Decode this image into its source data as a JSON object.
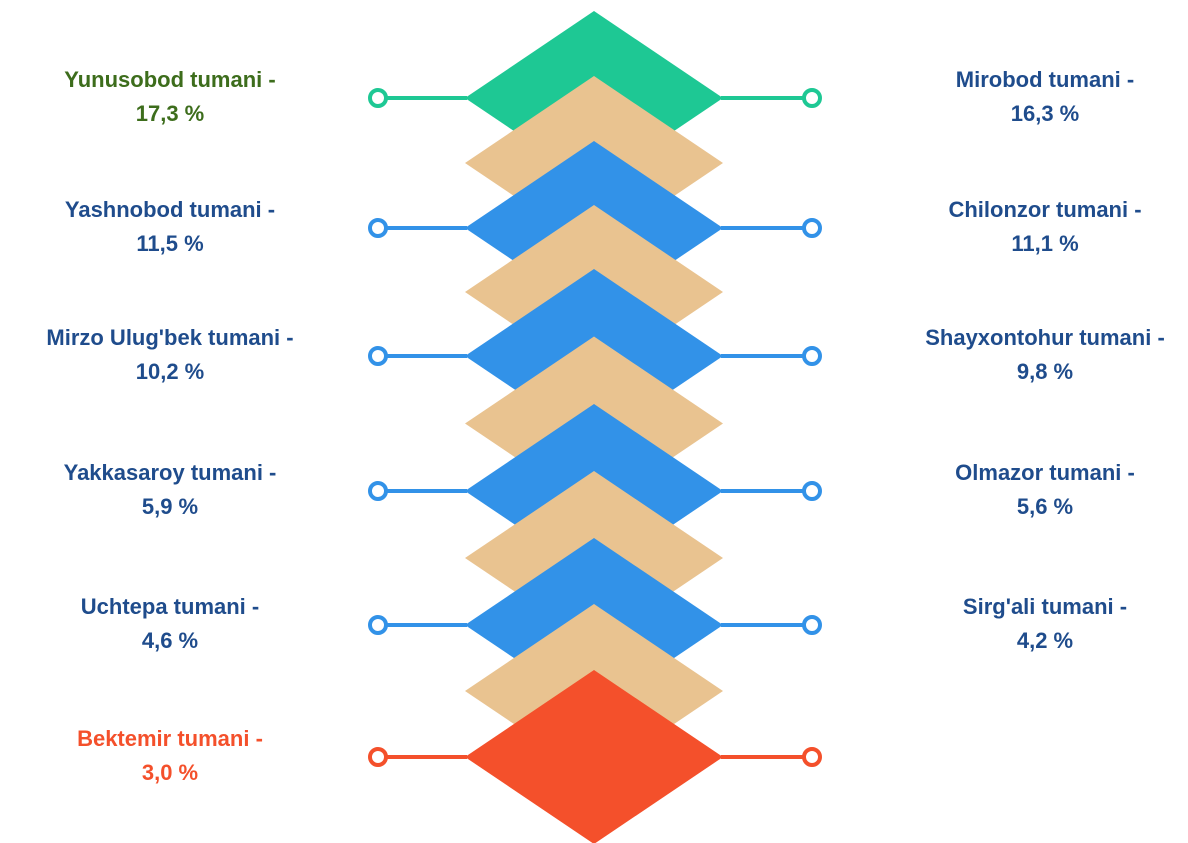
{
  "left": [
    {
      "label": "Yunusobod tumani -",
      "value": "17,3 %"
    },
    {
      "label": "Yashnobod tumani -",
      "value": "11,5 %"
    },
    {
      "label": "Mirzo Ulug'bek tumani -",
      "value": "10,2 %"
    },
    {
      "label": "Yakkasaroy tumani -",
      "value": "5,9 %"
    },
    {
      "label": "Uchtepa tumani -",
      "value": "4,6 %"
    },
    {
      "label": "Bektemir tumani -",
      "value": "3,0 %"
    }
  ],
  "right": [
    {
      "label": "Mirobod tumani -",
      "value": "16,3 %"
    },
    {
      "label": "Chilonzor tumani -",
      "value": "11,1 %"
    },
    {
      "label": "Shayxontohur tumani -",
      "value": "9,8 %"
    },
    {
      "label": "Olmazor tumani -",
      "value": "5,6 %"
    },
    {
      "label": "Sirg'ali tumani -",
      "value": "4,2 %"
    }
  ]
}
